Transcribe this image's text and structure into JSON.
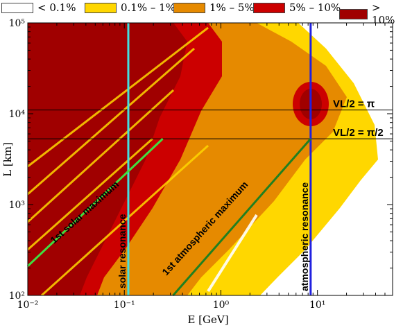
{
  "legend": [
    {
      "label": "< 0.1%",
      "color": "#ffffff"
    },
    {
      "label": "0.1% – 1%",
      "color": "#ffd700"
    },
    {
      "label": "1% – 5%",
      "color": "#e68a00"
    },
    {
      "label": "5% – 10%",
      "color": "#cc0000"
    },
    {
      "label": "> 10%",
      "color": "#a00000"
    }
  ],
  "chart_data": {
    "type": "heatmap",
    "xlabel": "E [GeV]",
    "ylabel": "L [km]",
    "x_scale": "log",
    "y_scale": "log",
    "xlim": [
      0.01,
      60
    ],
    "ylim": [
      100,
      100000
    ],
    "x_ticks": [
      "10⁻²",
      "10⁻¹",
      "10⁰",
      "10¹"
    ],
    "y_ticks": [
      "10²",
      "10³",
      "10⁴",
      "10⁵"
    ],
    "annotations": [
      {
        "text": "VL/2 = π",
        "L": 11000
      },
      {
        "text": "VL/2 = π/2",
        "L": 5300
      },
      {
        "text": "1st solar maximum"
      },
      {
        "text": "solar resonance",
        "E": 0.11
      },
      {
        "text": "1st atmospheric maximum"
      },
      {
        "text": "atmospheric resonance",
        "E": 8.5
      }
    ],
    "lines": [
      {
        "name": "solar resonance",
        "E": 0.11,
        "color": "#40e0e0"
      },
      {
        "name": "atmospheric resonance",
        "E": 8.5,
        "color": "#2020e0"
      },
      {
        "name": "1st solar maximum",
        "color": "#40e040",
        "from": [
          0.01,
          210
        ],
        "to": [
          0.25,
          5300
        ]
      },
      {
        "name": "1st atmospheric maximum",
        "color": "#208020",
        "from": [
          0.32,
          100
        ],
        "to": [
          8.5,
          5300
        ]
      }
    ]
  }
}
